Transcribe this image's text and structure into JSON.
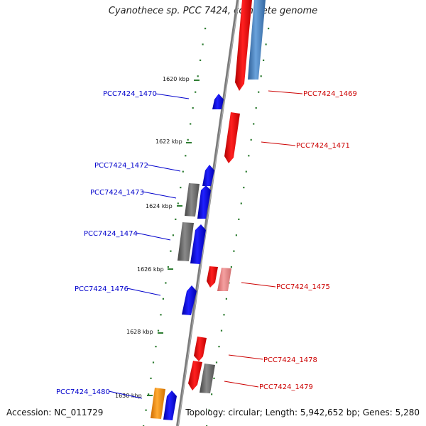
{
  "title": "Cyanothece sp. PCC 7424, complete genome",
  "footer": {
    "accession": "Accession: NC_011729",
    "topology": "Topology: circular; Length: 5,942,652 bp; Genes: 5,280"
  },
  "colors": {
    "backbone": "#888888",
    "dots": "#2e7d32",
    "forward": "#0000ff",
    "reverse": "#ff0000",
    "reverse_light": "#ee8888",
    "gray": "#707070",
    "orange": "#ff9900",
    "steel": "#4a86c8",
    "blue_label": "#0000cc",
    "red_label": "#cc0000"
  },
  "kbp_labels": [
    "1620 kbp",
    "1622 kbp",
    "1624 kbp",
    "1626 kbp",
    "1628 kbp",
    "1630 kbp"
  ],
  "genes_left": [
    "PCC7424_1470",
    "PCC7424_1472",
    "PCC7424_1473",
    "PCC7424_1474",
    "PCC7424_1476",
    "PCC7424_1480"
  ],
  "genes_right": [
    "PCC7424_1469",
    "PCC7424_1471",
    "PCC7424_1475",
    "PCC7424_1478",
    "PCC7424_1479"
  ]
}
